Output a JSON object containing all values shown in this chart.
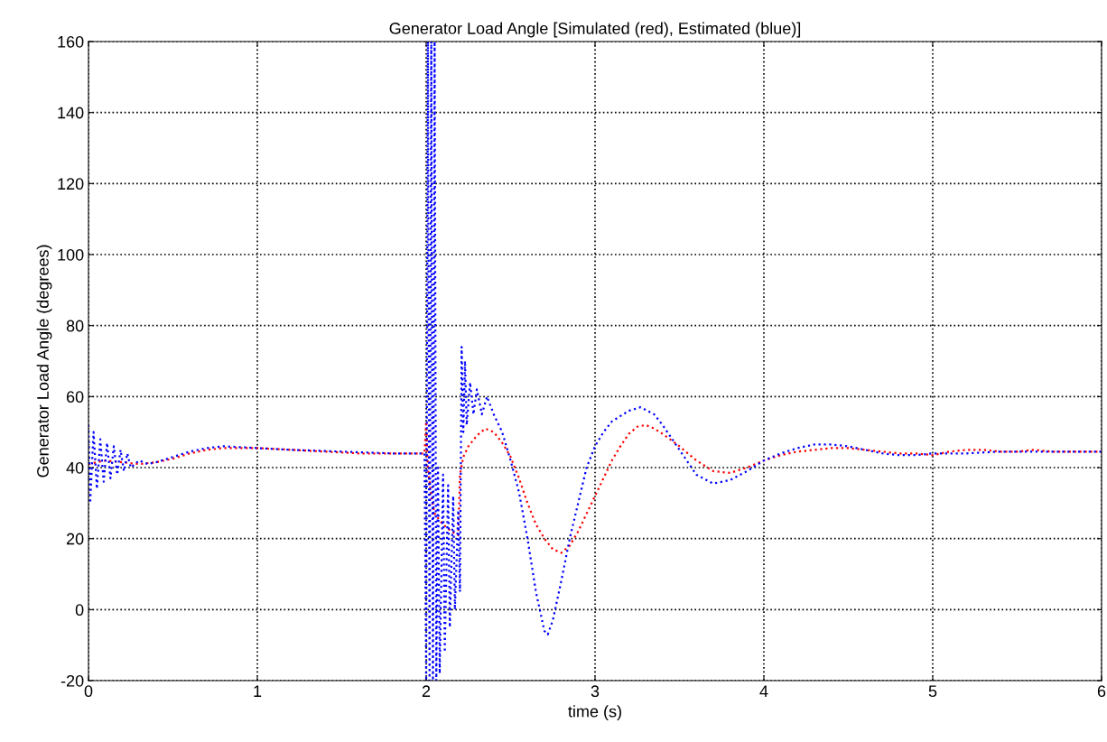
{
  "chart_data": {
    "type": "line",
    "title": "Generator Load Angle [Simulated (red), Estimated (blue)]",
    "xlabel": "time (s)",
    "ylabel": "Generator Load Angle (degrees)",
    "xlim": [
      0,
      6
    ],
    "xticks": [
      0,
      1,
      2,
      3,
      4,
      5,
      6
    ],
    "ylim": [
      -20,
      160
    ],
    "yticks": [
      -20,
      0,
      20,
      40,
      60,
      80,
      100,
      120,
      140,
      160
    ],
    "grid": true,
    "legend": false,
    "line_style": "dotted",
    "series": [
      {
        "color": "#ff0000",
        "x": [
          0,
          0.1,
          0.2,
          0.3,
          0.4,
          0.5,
          0.6,
          0.7,
          0.8,
          1.0,
          1.2,
          1.4,
          1.6,
          1.8,
          1.99,
          2.0,
          2.01,
          2.03,
          2.05,
          2.1,
          2.15,
          2.19,
          2.2,
          2.22,
          2.25,
          2.3,
          2.35,
          2.4,
          2.45,
          2.5,
          2.55,
          2.6,
          2.65,
          2.7,
          2.75,
          2.8,
          2.85,
          2.9,
          2.95,
          3.0,
          3.05,
          3.1,
          3.15,
          3.2,
          3.25,
          3.3,
          3.35,
          3.4,
          3.5,
          3.6,
          3.7,
          3.8,
          3.9,
          4.0,
          4.1,
          4.2,
          4.3,
          4.4,
          4.5,
          4.6,
          4.7,
          4.8,
          4.9,
          5.0,
          5.1,
          5.2,
          5.3,
          5.4,
          5.5,
          5.6,
          5.7,
          5.8,
          5.9,
          6.0
        ],
        "values": [
          41,
          42,
          41.5,
          41,
          41.5,
          42.5,
          44,
          45,
          45.5,
          45.5,
          45,
          44.5,
          44,
          44,
          44,
          53,
          40,
          32,
          27,
          24,
          22,
          21,
          38,
          43,
          46,
          49,
          51,
          50,
          47,
          43,
          37,
          30,
          24,
          20,
          17,
          16,
          18,
          22,
          27,
          32,
          37,
          42,
          46,
          49.5,
          51.5,
          52,
          51,
          49.5,
          46,
          42,
          39,
          38.5,
          40,
          42,
          43.5,
          44.5,
          45,
          45.5,
          45.5,
          45,
          44.5,
          44,
          44,
          43.5,
          44.5,
          45,
          45,
          44.5,
          44.5,
          45,
          44.5,
          44.5,
          44.5,
          44.5
        ]
      },
      {
        "color": "#0000ff",
        "x": [
          0,
          0.01,
          0.03,
          0.05,
          0.07,
          0.09,
          0.11,
          0.13,
          0.15,
          0.17,
          0.19,
          0.21,
          0.23,
          0.25,
          0.3,
          0.35,
          0.4,
          0.5,
          0.6,
          0.7,
          0.8,
          1.0,
          1.2,
          1.5,
          1.8,
          1.99,
          2.0,
          2.01,
          2.02,
          2.03,
          2.04,
          2.05,
          2.06,
          2.07,
          2.08,
          2.1,
          2.11,
          2.13,
          2.14,
          2.16,
          2.17,
          2.19,
          2.2,
          2.21,
          2.22,
          2.23,
          2.24,
          2.26,
          2.28,
          2.3,
          2.33,
          2.36,
          2.4,
          2.45,
          2.5,
          2.55,
          2.6,
          2.65,
          2.7,
          2.72,
          2.75,
          2.8,
          2.85,
          2.9,
          2.95,
          3.0,
          3.05,
          3.1,
          3.2,
          3.27,
          3.35,
          3.4,
          3.5,
          3.6,
          3.7,
          3.8,
          3.9,
          4.0,
          4.1,
          4.2,
          4.3,
          4.4,
          4.5,
          4.6,
          4.7,
          4.8,
          4.9,
          5.0,
          5.2,
          5.4,
          5.6,
          5.8,
          6.0
        ],
        "values": [
          52,
          30,
          50,
          34,
          48,
          36,
          47,
          37,
          46,
          38,
          45,
          39,
          44,
          40,
          42,
          41,
          41.5,
          43,
          44.5,
          45.5,
          46,
          45.5,
          45,
          44.5,
          44,
          44,
          -20,
          160,
          -20,
          160,
          -20,
          160,
          -20,
          40,
          -18,
          38,
          -12,
          35,
          -5,
          32,
          0,
          28,
          5,
          74,
          50,
          70,
          52,
          64,
          55,
          62,
          55,
          60,
          55,
          50,
          42,
          33,
          20,
          5,
          -6,
          -7,
          -3,
          8,
          20,
          30,
          40,
          46,
          50,
          53,
          56,
          57,
          55,
          52,
          45,
          38,
          35.5,
          36.5,
          39,
          42,
          44,
          45.5,
          46.5,
          46.5,
          46,
          45,
          44,
          43.5,
          43.5,
          44,
          44,
          44.5,
          44.5,
          44.5,
          44.5
        ]
      }
    ]
  }
}
